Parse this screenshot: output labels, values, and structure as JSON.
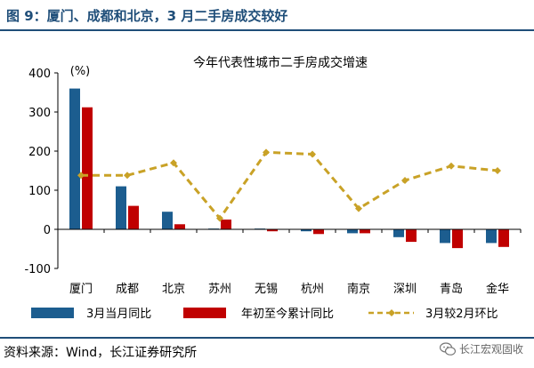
{
  "figure": {
    "title": "图 9：厦门、成都和北京，3 月二手房成交较好",
    "source": "资料来源：Wind，长江证券研究所",
    "watermark": "长江宏观固收",
    "watermark_icon": "wechat-icon"
  },
  "colors": {
    "series1": "#1c5d8f",
    "series2": "#c00000",
    "series3": "#c9a227",
    "header": "#1f4e79"
  },
  "chart_data": {
    "type": "bar",
    "title": "今年代表性城市二手房成交增速",
    "unit_label": "(%)",
    "categories": [
      "厦门",
      "成都",
      "北京",
      "苏州",
      "无锡",
      "杭州",
      "南京",
      "深圳",
      "青岛",
      "金华"
    ],
    "ylim": [
      -100,
      400
    ],
    "yticks": [
      -100,
      0,
      100,
      200,
      300,
      400
    ],
    "ytick_labels": [
      "-100",
      "0",
      "100",
      "200",
      "300",
      "400"
    ],
    "series": [
      {
        "name": "3月当月同比",
        "type": "bar",
        "values": [
          360,
          110,
          45,
          2,
          2,
          -5,
          -10,
          -20,
          -35,
          -35
        ]
      },
      {
        "name": "年初至今累计同比",
        "type": "bar",
        "values": [
          312,
          60,
          13,
          25,
          -5,
          -12,
          -10,
          -32,
          -48,
          -45
        ]
      },
      {
        "name": "3月较2月环比",
        "type": "line",
        "values": [
          138,
          138,
          170,
          28,
          197,
          192,
          53,
          125,
          162,
          150
        ]
      }
    ],
    "legend_position": "bottom"
  }
}
